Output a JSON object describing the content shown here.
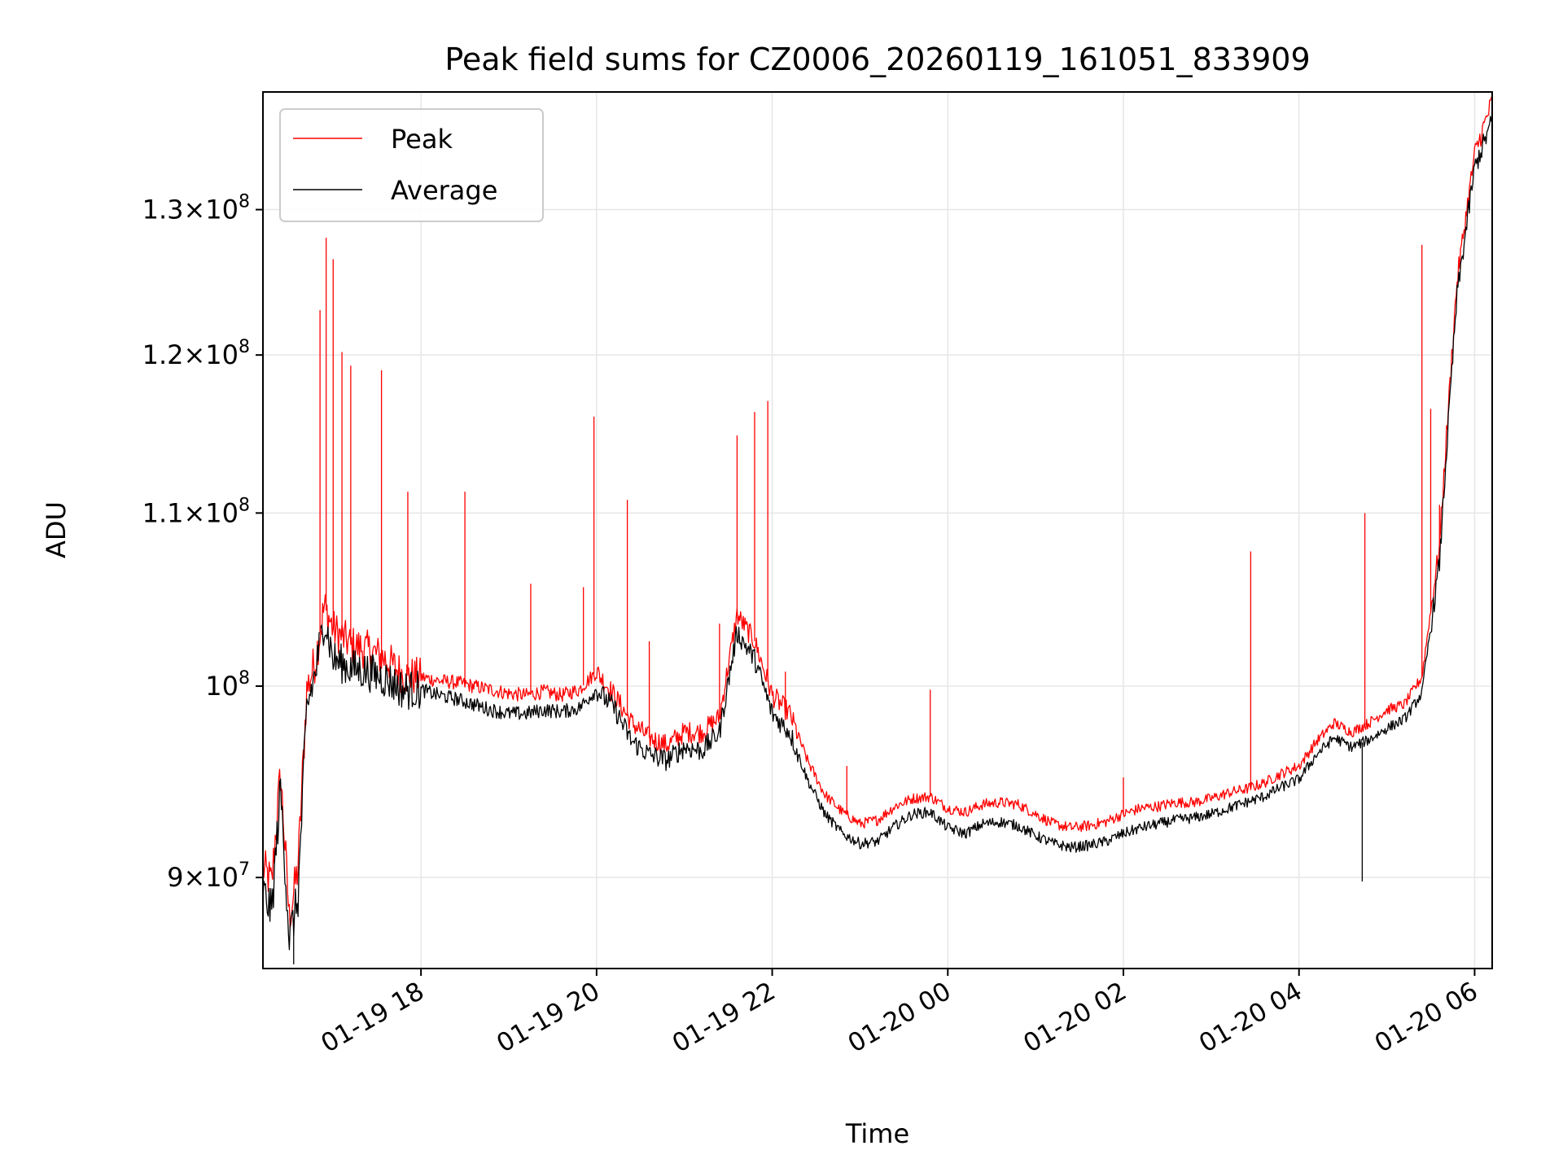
{
  "chart_data": {
    "type": "line",
    "title": "Peak field sums for CZ0006_20260119_161051_833909",
    "xlabel": "Time",
    "ylabel": "ADU",
    "yscale": "log",
    "ylim": [
      85600000,
      138700000
    ],
    "xlim_hours": [
      16.2,
      30.2
    ],
    "grid": true,
    "legend": {
      "placement": "top-left",
      "entries": [
        "Peak",
        "Average"
      ]
    },
    "x_ticks": [
      {
        "hour": 18,
        "label": "01-19 18"
      },
      {
        "hour": 20,
        "label": "01-19 20"
      },
      {
        "hour": 22,
        "label": "01-19 22"
      },
      {
        "hour": 24,
        "label": "01-20 00"
      },
      {
        "hour": 26,
        "label": "01-20 02"
      },
      {
        "hour": 28,
        "label": "01-20 04"
      },
      {
        "hour": 30,
        "label": "01-20 06"
      }
    ],
    "y_ticks": [
      {
        "value": 90000000,
        "mant": "9",
        "exp": "7"
      },
      {
        "value": 100000000,
        "mant": "",
        "exp": "8"
      },
      {
        "value": 110000000,
        "mant": "1.1",
        "exp": "8"
      },
      {
        "value": 120000000,
        "mant": "1.2",
        "exp": "8"
      },
      {
        "value": 130000000,
        "mant": "1.3",
        "exp": "8"
      }
    ],
    "series": [
      {
        "name": "Peak",
        "color": "#ff0000",
        "x_hours": [
          16.2,
          16.3,
          16.4,
          16.5,
          16.6,
          16.7,
          16.8,
          16.9,
          17.0,
          17.2,
          17.4,
          17.6,
          17.8,
          18.0,
          18.2,
          18.4,
          18.6,
          18.8,
          19.0,
          19.2,
          19.4,
          19.6,
          19.8,
          20.0,
          20.2,
          20.4,
          20.6,
          20.8,
          21.0,
          21.2,
          21.4,
          21.6,
          21.8,
          22.0,
          22.2,
          22.4,
          22.6,
          22.8,
          23.0,
          23.2,
          23.4,
          23.6,
          23.8,
          24.0,
          24.2,
          24.4,
          24.6,
          24.8,
          25.0,
          25.2,
          25.4,
          25.6,
          25.8,
          26.0,
          26.2,
          26.4,
          26.6,
          26.8,
          27.0,
          27.2,
          27.4,
          27.6,
          27.8,
          28.0,
          28.2,
          28.4,
          28.6,
          28.8,
          29.0,
          29.2,
          29.4,
          29.6,
          29.8,
          30.0,
          30.2
        ],
        "values": [
          90500000,
          89700000,
          95300000,
          88000000,
          90500000,
          99800000,
          101500000,
          104500000,
          103200000,
          102300000,
          102000000,
          101500000,
          100600000,
          100500000,
          100300000,
          100200000,
          100000000,
          99800000,
          99600000,
          99500000,
          99700000,
          99500000,
          99800000,
          100800000,
          99500000,
          98000000,
          97200000,
          96800000,
          97500000,
          97500000,
          98300000,
          104000000,
          102500000,
          99500000,
          98500000,
          96000000,
          94200000,
          93300000,
          92700000,
          92900000,
          93600000,
          94000000,
          94100000,
          93500000,
          93300000,
          93700000,
          93800000,
          93700000,
          93200000,
          92700000,
          92500000,
          92600000,
          92800000,
          93200000,
          93500000,
          93600000,
          93800000,
          93800000,
          94000000,
          94300000,
          94500000,
          94800000,
          95300000,
          95700000,
          97000000,
          98000000,
          97500000,
          98000000,
          98700000,
          99000000,
          100500000,
          108000000,
          125000000,
          134000000,
          138000000
        ]
      },
      {
        "name": "Average",
        "color": "#000000",
        "x_hours": [
          16.2,
          16.3,
          16.4,
          16.5,
          16.6,
          16.7,
          16.8,
          16.9,
          17.0,
          17.2,
          17.4,
          17.6,
          17.8,
          18.0,
          18.2,
          18.4,
          18.6,
          18.8,
          19.0,
          19.2,
          19.4,
          19.6,
          19.8,
          20.0,
          20.2,
          20.4,
          20.6,
          20.8,
          21.0,
          21.2,
          21.4,
          21.6,
          21.8,
          22.0,
          22.2,
          22.4,
          22.6,
          22.8,
          23.0,
          23.2,
          23.4,
          23.6,
          23.8,
          24.0,
          24.2,
          24.4,
          24.6,
          24.8,
          25.0,
          25.2,
          25.4,
          25.6,
          25.8,
          26.0,
          26.2,
          26.4,
          26.6,
          26.8,
          27.0,
          27.2,
          27.4,
          27.6,
          27.8,
          28.0,
          28.2,
          28.4,
          28.6,
          28.8,
          29.0,
          29.2,
          29.4,
          29.6,
          29.8,
          30.0,
          30.2
        ],
        "values": [
          89300000,
          88300000,
          94500000,
          87000000,
          89000000,
          98800000,
          100800000,
          103800000,
          101500000,
          101000000,
          100800000,
          100400000,
          99800000,
          99800000,
          99500000,
          99300000,
          99000000,
          98700000,
          98500000,
          98500000,
          98700000,
          98600000,
          98800000,
          99800000,
          98800000,
          97000000,
          96300000,
          96000000,
          96700000,
          96500000,
          97500000,
          103000000,
          101500000,
          98500000,
          97500000,
          95000000,
          93200000,
          92200000,
          91700000,
          91800000,
          92600000,
          93200000,
          93300000,
          92500000,
          92200000,
          92700000,
          92800000,
          92600000,
          92100000,
          91700000,
          91500000,
          91600000,
          91800000,
          92200000,
          92500000,
          92700000,
          92900000,
          93000000,
          93200000,
          93500000,
          93800000,
          94100000,
          94600000,
          95000000,
          96300000,
          97200000,
          96700000,
          97100000,
          97700000,
          98200000,
          99600000,
          107000000,
          124000000,
          133000000,
          136500000
        ]
      }
    ],
    "spikes": [
      {
        "hour": 16.85,
        "value": 123000000
      },
      {
        "hour": 16.92,
        "value": 128000000
      },
      {
        "hour": 17.0,
        "value": 126500000
      },
      {
        "hour": 17.1,
        "value": 120200000
      },
      {
        "hour": 17.2,
        "value": 119300000
      },
      {
        "hour": 17.55,
        "value": 119000000
      },
      {
        "hour": 17.85,
        "value": 111300000
      },
      {
        "hour": 18.5,
        "value": 111300000
      },
      {
        "hour": 19.25,
        "value": 105800000
      },
      {
        "hour": 19.85,
        "value": 105600000
      },
      {
        "hour": 19.97,
        "value": 116000000
      },
      {
        "hour": 20.35,
        "value": 110800000
      },
      {
        "hour": 20.6,
        "value": 102500000
      },
      {
        "hour": 21.4,
        "value": 103500000
      },
      {
        "hour": 21.6,
        "value": 114800000
      },
      {
        "hour": 21.8,
        "value": 116300000
      },
      {
        "hour": 21.95,
        "value": 117000000
      },
      {
        "hour": 22.15,
        "value": 100800000
      },
      {
        "hour": 22.85,
        "value": 95700000
      },
      {
        "hour": 23.8,
        "value": 99800000
      },
      {
        "hour": 26.0,
        "value": 95100000
      },
      {
        "hour": 27.45,
        "value": 107700000
      },
      {
        "hour": 28.75,
        "value": 110000000
      },
      {
        "hour": 29.4,
        "value": 127500000
      },
      {
        "hour": 29.5,
        "value": 116500000
      },
      {
        "hour": 29.6,
        "value": 110500000
      }
    ],
    "dips": [
      {
        "hour": 28.72,
        "value": 89800000
      },
      {
        "hour": 16.55,
        "value": 85800000
      }
    ]
  }
}
